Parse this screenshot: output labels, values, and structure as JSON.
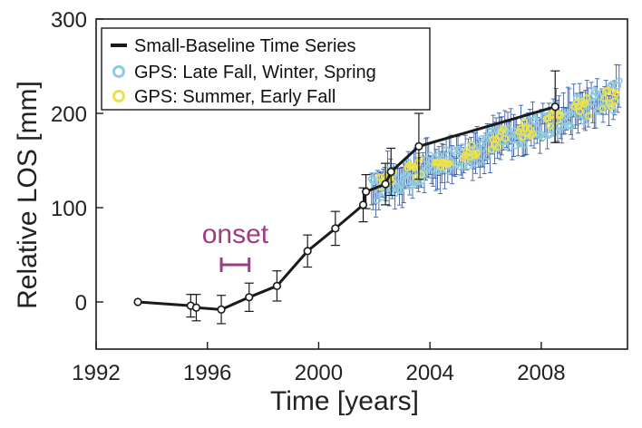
{
  "chart_data": {
    "type": "line",
    "xlabel": "Time [years]",
    "ylabel": "Relative LOS [mm]",
    "xlim": [
      1992,
      2011.1
    ],
    "ylim": [
      -50,
      300
    ],
    "xticks": [
      1992,
      1996,
      2000,
      2004,
      2008
    ],
    "yticks": [
      0,
      100,
      200,
      300
    ],
    "grid": false,
    "legend_position": "top-left",
    "annotation": {
      "text": "onset",
      "x_start": 1996.5,
      "x_end": 1997.5,
      "color": "#a03a86"
    },
    "series": [
      {
        "name": "Small-Baseline Time Series",
        "kind": "line-with-errorbars",
        "color": "#1a1a1a",
        "x": [
          1993.5,
          1995.4,
          1995.6,
          1996.5,
          1997.5,
          1998.5,
          1999.6,
          2000.6,
          2001.6,
          2001.7,
          2002.4,
          2002.6,
          2003.6,
          2008.5
        ],
        "y": [
          0,
          -4,
          -6,
          -8,
          5,
          17,
          54,
          78,
          103,
          117,
          125,
          138,
          165,
          207
        ],
        "error": [
          0,
          12,
          14,
          15,
          15,
          16,
          17,
          18,
          18,
          18,
          22,
          25,
          35,
          38
        ]
      },
      {
        "name": "GPS: Late Fall, Winter, Spring",
        "kind": "scatter-with-errorbars",
        "color": "#8ccbe2",
        "x_range": [
          2001.9,
          2010.8
        ],
        "y_start": 120,
        "y_end": 220,
        "error": 16
      },
      {
        "name": "GPS: Summer, Early Fall",
        "kind": "scatter",
        "color": "#ece14a",
        "x_range": [
          2002.0,
          2010.7
        ],
        "y_start": 125,
        "y_end": 218
      }
    ]
  }
}
